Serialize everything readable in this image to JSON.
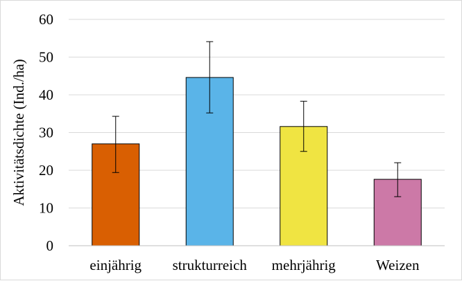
{
  "chart_data": {
    "type": "bar",
    "title": "",
    "xlabel": "",
    "ylabel": "Aktivitätsdichte (Ind./ha)",
    "ylim": [
      0,
      60
    ],
    "yticks": [
      0,
      10,
      20,
      30,
      40,
      50,
      60
    ],
    "grid": true,
    "categories": [
      "einjährig",
      "strukturreich",
      "mehrjährig",
      "Weizen"
    ],
    "values": [
      27,
      44.6,
      31.6,
      17.6
    ],
    "error_low": [
      19.4,
      35.2,
      25.0,
      13.0
    ],
    "error_high": [
      34.3,
      54.1,
      38.3,
      22.0
    ],
    "colors": [
      "#d95f02",
      "#5ab4e8",
      "#f0e442",
      "#cc79a7"
    ]
  }
}
